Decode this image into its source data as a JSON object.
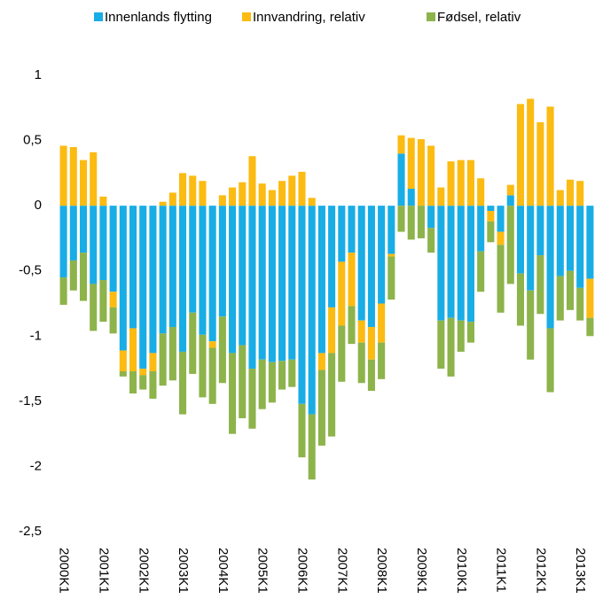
{
  "chart_data": {
    "type": "stacked-bar",
    "categories": [
      "2000K1",
      null,
      null,
      null,
      "2001K1",
      null,
      null,
      null,
      "2002K1",
      null,
      null,
      null,
      "2003K1",
      null,
      null,
      null,
      "2004K1",
      null,
      null,
      null,
      "2005K1",
      null,
      null,
      null,
      "2006K1",
      null,
      null,
      null,
      "2007K1",
      null,
      null,
      null,
      "2008K1",
      null,
      null,
      null,
      "2009K1",
      null,
      null,
      null,
      "2010K1",
      null,
      null,
      null,
      "2011K1",
      null,
      null,
      null,
      "2012K1",
      null,
      null,
      null,
      "2013K1",
      null
    ],
    "series": [
      {
        "name": "Innenlands flytting",
        "color": "#19ade6",
        "values": [
          -0.55,
          -0.42,
          -0.36,
          -0.6,
          -0.57,
          -0.66,
          -1.11,
          -0.94,
          -1.25,
          -1.13,
          -0.98,
          -0.93,
          -1.12,
          -0.82,
          -0.99,
          -1.04,
          -0.85,
          -1.13,
          -1.07,
          -1.25,
          -1.18,
          -1.2,
          -1.19,
          -1.18,
          -1.52,
          -1.6,
          -1.13,
          -0.78,
          -0.43,
          -0.36,
          -0.88,
          -0.93,
          -0.75,
          -0.37,
          0.4,
          0.13,
          0,
          -0.17,
          -0.88,
          -0.86,
          -0.88,
          -0.89,
          -0.35,
          -0.04,
          -0.2,
          0.08,
          -0.52,
          -0.65,
          -0.38,
          -0.94,
          -0.54,
          -0.5,
          -0.63,
          -0.56
        ]
      },
      {
        "name": "Innvandring, relativ",
        "color": "#fbbb12",
        "values": [
          0.46,
          0.45,
          0.35,
          0.41,
          0.07,
          -0.12,
          -0.16,
          -0.33,
          -0.05,
          -0.14,
          0.03,
          0.1,
          0.25,
          0.23,
          0.19,
          -0.05,
          0.08,
          0.14,
          0.18,
          0.38,
          0.17,
          0.12,
          0.19,
          0.23,
          0.26,
          0.06,
          -0.13,
          -0.35,
          -0.49,
          -0.41,
          -0.17,
          -0.25,
          -0.3,
          -0.02,
          0.14,
          0.39,
          0.51,
          0.46,
          0.14,
          0.34,
          0.35,
          0.35,
          0.21,
          -0.08,
          -0.1,
          0.08,
          0.78,
          0.82,
          0.64,
          0.76,
          0.12,
          0.2,
          0.19,
          -0.3
        ]
      },
      {
        "name": "Fødsel, relativ",
        "color": "#8db34b",
        "values": [
          -0.21,
          -0.23,
          -0.37,
          -0.36,
          -0.32,
          -0.2,
          -0.04,
          -0.17,
          -0.11,
          -0.21,
          -0.4,
          -0.41,
          -0.48,
          -0.47,
          -0.48,
          -0.43,
          -0.51,
          -0.62,
          -0.56,
          -0.46,
          -0.38,
          -0.31,
          -0.22,
          -0.21,
          -0.41,
          -0.5,
          -0.58,
          -0.64,
          -0.43,
          -0.29,
          -0.31,
          -0.24,
          -0.28,
          -0.33,
          -0.2,
          -0.26,
          -0.25,
          -0.19,
          -0.37,
          -0.45,
          -0.24,
          -0.16,
          -0.31,
          -0.16,
          -0.52,
          -0.6,
          -0.4,
          -0.53,
          -0.45,
          -0.49,
          -0.34,
          -0.3,
          -0.25,
          -0.14
        ]
      }
    ],
    "ylim": [
      -2.5,
      1
    ],
    "yticks": [
      {
        "value": -2.5,
        "label": "-2,5"
      },
      -2,
      {
        "value": -1.5,
        "label": "-1,5"
      },
      -1,
      {
        "value": -0.5,
        "label": "-0,5"
      },
      0,
      {
        "value": 0.5,
        "label": "0,5"
      },
      1
    ],
    "legend": "top"
  }
}
